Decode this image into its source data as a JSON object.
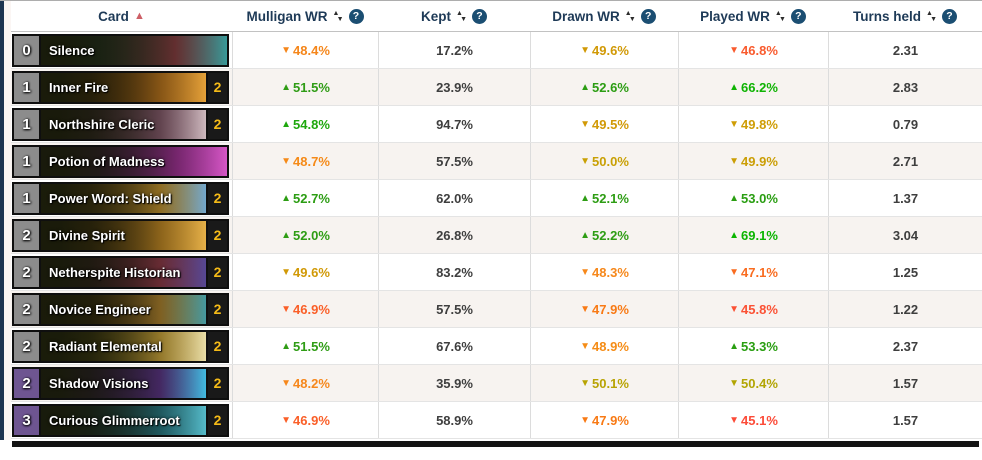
{
  "colors": {
    "strip": "#1d3551",
    "headtxt": "#1e3a57",
    "cardsort": "#cd5f66",
    "helpbg": "#1b4e72",
    "countcol": "#f5bb18",
    "row_alt_bg": "#f7f3f0",
    "cost_common": "#8c8c8c",
    "cost_epic": "#6e5591",
    "positive_green": "#2e9d14",
    "negative_orange": "#f5861a",
    "negative_red": "#fb5134",
    "neutral_amber": "#c9a004"
  },
  "icons": {
    "sort_asc": "▲",
    "sort_up": "▲",
    "sort_down": "▼",
    "help": "?"
  },
  "header": {
    "columns": [
      {
        "label": "Card"
      },
      {
        "label": "Mulligan WR"
      },
      {
        "label": "Kept"
      },
      {
        "label": "Drawn WR"
      },
      {
        "label": "Played WR"
      },
      {
        "label": "Turns held"
      }
    ]
  },
  "rows": [
    {
      "cost": "0",
      "cost_color": "#8c8c8c",
      "name": "Silence",
      "count": null,
      "art": [
        "#1d3b2f",
        "#8c3a44",
        "#3aa0a0"
      ],
      "mulligan": {
        "v": "48.4%",
        "dir": "down",
        "color": "#f5861a"
      },
      "kept": "17.2%",
      "drawn": {
        "v": "49.6%",
        "dir": "down",
        "color": "#d19906"
      },
      "played": {
        "v": "46.8%",
        "dir": "down",
        "color": "#f95b2e"
      },
      "turns": "2.31"
    },
    {
      "cost": "1",
      "cost_color": "#8c8c8c",
      "name": "Inner Fire",
      "count": "2",
      "art": [
        "#5a3208",
        "#c4761c",
        "#f0a93c"
      ],
      "mulligan": {
        "v": "51.5%",
        "dir": "up",
        "color": "#2f9c15"
      },
      "kept": "23.9%",
      "drawn": {
        "v": "52.6%",
        "dir": "up",
        "color": "#2c9d13"
      },
      "played": {
        "v": "66.2%",
        "dir": "up",
        "color": "#0fb303"
      },
      "turns": "2.83"
    },
    {
      "cost": "1",
      "cost_color": "#8c8c8c",
      "name": "Northshire Cleric",
      "count": "2",
      "art": [
        "#3a2430",
        "#8a5a74",
        "#d8c2c8"
      ],
      "mulligan": {
        "v": "54.8%",
        "dir": "up",
        "color": "#1ea70d"
      },
      "kept": "94.7%",
      "drawn": {
        "v": "49.5%",
        "dir": "down",
        "color": "#d19906"
      },
      "played": {
        "v": "49.8%",
        "dir": "down",
        "color": "#cf9d05"
      },
      "turns": "0.79"
    },
    {
      "cost": "1",
      "cost_color": "#8c8c8c",
      "name": "Potion of Madness",
      "count": null,
      "art": [
        "#401a4a",
        "#a62ba0",
        "#e05ad0"
      ],
      "mulligan": {
        "v": "48.7%",
        "dir": "down",
        "color": "#f58a18"
      },
      "kept": "57.5%",
      "drawn": {
        "v": "50.0%",
        "dir": "down",
        "color": "#c9a004"
      },
      "played": {
        "v": "49.9%",
        "dir": "down",
        "color": "#cb9e05"
      },
      "turns": "2.71"
    },
    {
      "cost": "1",
      "cost_color": "#8c8c8c",
      "name": "Power Word: Shield",
      "count": "2",
      "art": [
        "#6a4a14",
        "#d09a30",
        "#78b0d8"
      ],
      "mulligan": {
        "v": "52.7%",
        "dir": "up",
        "color": "#2c9d13"
      },
      "kept": "62.0%",
      "drawn": {
        "v": "52.1%",
        "dir": "up",
        "color": "#2e9d14"
      },
      "played": {
        "v": "53.0%",
        "dir": "up",
        "color": "#2a9e12"
      },
      "turns": "1.37"
    },
    {
      "cost": "2",
      "cost_color": "#8c8c8c",
      "name": "Divine Spirit",
      "count": "2",
      "art": [
        "#5a3a0c",
        "#cc8c24",
        "#f0b84c"
      ],
      "mulligan": {
        "v": "52.0%",
        "dir": "up",
        "color": "#2e9d14"
      },
      "kept": "26.8%",
      "drawn": {
        "v": "52.2%",
        "dir": "up",
        "color": "#2e9d14"
      },
      "played": {
        "v": "69.1%",
        "dir": "up",
        "color": "#0bb501"
      },
      "turns": "3.04"
    },
    {
      "cost": "2",
      "cost_color": "#8c8c8c",
      "name": "Netherspite Historian",
      "count": "2",
      "art": [
        "#3a1a2a",
        "#93354a",
        "#5a4a9c"
      ],
      "mulligan": {
        "v": "49.6%",
        "dir": "down",
        "color": "#d19906"
      },
      "kept": "83.2%",
      "drawn": {
        "v": "48.3%",
        "dir": "down",
        "color": "#f6881b"
      },
      "played": {
        "v": "47.1%",
        "dir": "down",
        "color": "#f96c20"
      },
      "turns": "1.25"
    },
    {
      "cost": "2",
      "cost_color": "#8c8c8c",
      "name": "Novice Engineer",
      "count": "2",
      "art": [
        "#4a300e",
        "#b8862e",
        "#48a0a8"
      ],
      "mulligan": {
        "v": "46.9%",
        "dir": "down",
        "color": "#fa5f28"
      },
      "kept": "57.5%",
      "drawn": {
        "v": "47.9%",
        "dir": "down",
        "color": "#f87a15"
      },
      "played": {
        "v": "45.8%",
        "dir": "down",
        "color": "#fb5134"
      },
      "turns": "1.22"
    },
    {
      "cost": "2",
      "cost_color": "#8c8c8c",
      "name": "Radiant Elemental",
      "count": "2",
      "art": [
        "#564a10",
        "#d8ac3c",
        "#f4e8b0"
      ],
      "mulligan": {
        "v": "51.5%",
        "dir": "up",
        "color": "#2f9c15"
      },
      "kept": "67.6%",
      "drawn": {
        "v": "48.9%",
        "dir": "down",
        "color": "#f58c16"
      },
      "played": {
        "v": "53.3%",
        "dir": "up",
        "color": "#299e11"
      },
      "turns": "2.37"
    },
    {
      "cost": "2",
      "cost_color": "#6e5591",
      "name": "Shadow Visions",
      "count": "2",
      "art": [
        "#2e1446",
        "#5c2f92",
        "#44c4ec"
      ],
      "mulligan": {
        "v": "48.2%",
        "dir": "down",
        "color": "#f6871c"
      },
      "kept": "35.9%",
      "drawn": {
        "v": "50.1%",
        "dir": "down",
        "color": "#b8a303"
      },
      "played": {
        "v": "50.4%",
        "dir": "down",
        "color": "#b2a503"
      },
      "turns": "1.57"
    },
    {
      "cost": "3",
      "cost_color": "#6e5591",
      "name": "Curious Glimmerroot",
      "count": "2",
      "art": [
        "#14333a",
        "#237a8c",
        "#59c4d4"
      ],
      "mulligan": {
        "v": "46.9%",
        "dir": "down",
        "color": "#fa5f28"
      },
      "kept": "58.9%",
      "drawn": {
        "v": "47.9%",
        "dir": "down",
        "color": "#f87a15"
      },
      "played": {
        "v": "45.1%",
        "dir": "down",
        "color": "#fc4b38"
      },
      "turns": "1.57"
    }
  ]
}
